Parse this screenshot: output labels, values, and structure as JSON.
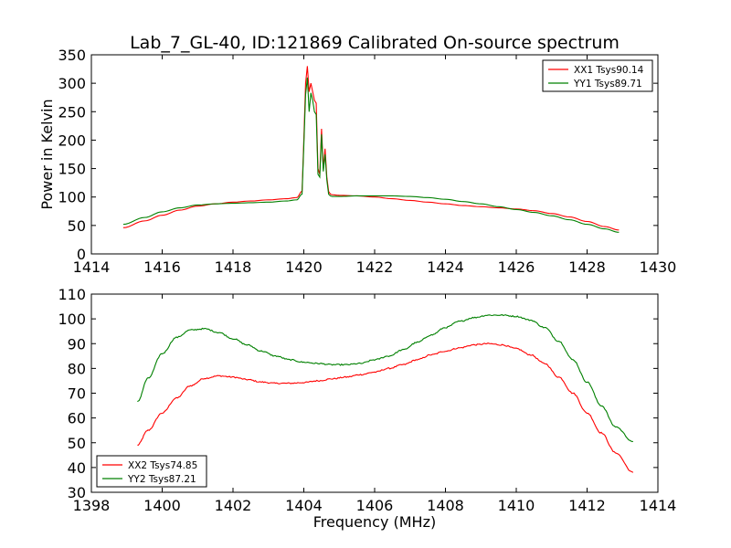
{
  "colors": {
    "red": "#ff0000",
    "green": "#008000"
  },
  "chart_data": [
    {
      "type": "line",
      "title": "Lab_7_GL-40, ID:121869 Calibrated On-source spectrum",
      "xlabel": "",
      "ylabel": "Power in Kelvin",
      "xlim": [
        1414,
        1430
      ],
      "ylim": [
        0,
        350
      ],
      "xticks": [
        1414,
        1416,
        1418,
        1420,
        1422,
        1424,
        1426,
        1428,
        1430
      ],
      "yticks": [
        0,
        50,
        100,
        150,
        200,
        250,
        300,
        350
      ],
      "legend_position": "top-right",
      "series": [
        {
          "name": "XX1 Tsys90.14",
          "color": "#ff0000",
          "x": [
            1414.9,
            1415.5,
            1416.0,
            1416.5,
            1417.0,
            1417.5,
            1418.0,
            1418.5,
            1419.0,
            1419.5,
            1419.8,
            1419.95,
            1420.0,
            1420.05,
            1420.1,
            1420.15,
            1420.2,
            1420.25,
            1420.3,
            1420.35,
            1420.4,
            1420.45,
            1420.5,
            1420.55,
            1420.6,
            1420.65,
            1420.7,
            1420.75,
            1420.8,
            1421.0,
            1421.5,
            1422.0,
            1422.5,
            1423.0,
            1423.5,
            1424.0,
            1424.5,
            1425.0,
            1425.5,
            1426.0,
            1426.5,
            1427.0,
            1427.5,
            1428.0,
            1428.5,
            1428.9
          ],
          "y": [
            46,
            58,
            68,
            77,
            84,
            88,
            91,
            93,
            95,
            97,
            99,
            110,
            200,
            300,
            330,
            285,
            300,
            285,
            270,
            265,
            150,
            140,
            220,
            150,
            185,
            135,
            110,
            105,
            104,
            103,
            102,
            100,
            97,
            94,
            91,
            88,
            85,
            83,
            81,
            79,
            76,
            71,
            65,
            57,
            48,
            42
          ]
        },
        {
          "name": "YY1 Tsys89.71",
          "color": "#008000",
          "x": [
            1414.9,
            1415.5,
            1416.0,
            1416.5,
            1417.0,
            1417.5,
            1418.0,
            1418.5,
            1419.0,
            1419.5,
            1419.8,
            1419.95,
            1420.0,
            1420.05,
            1420.1,
            1420.15,
            1420.2,
            1420.25,
            1420.3,
            1420.35,
            1420.4,
            1420.45,
            1420.5,
            1420.55,
            1420.6,
            1420.65,
            1420.7,
            1420.75,
            1420.8,
            1421.0,
            1421.5,
            1422.0,
            1422.5,
            1423.0,
            1423.5,
            1424.0,
            1424.5,
            1425.0,
            1425.5,
            1426.0,
            1426.5,
            1427.0,
            1427.5,
            1428.0,
            1428.5,
            1428.9
          ],
          "y": [
            52,
            64,
            74,
            81,
            86,
            88,
            89,
            90,
            91,
            93,
            95,
            105,
            190,
            280,
            310,
            250,
            283,
            270,
            250,
            245,
            140,
            135,
            210,
            145,
            175,
            130,
            105,
            102,
            101,
            101,
            102,
            102,
            102,
            101,
            99,
            96,
            92,
            88,
            83,
            78,
            73,
            67,
            60,
            52,
            44,
            38
          ]
        }
      ]
    },
    {
      "type": "line",
      "title": "",
      "xlabel": "Frequency (MHz)",
      "ylabel": "",
      "xlim": [
        1398,
        1414
      ],
      "ylim": [
        30,
        110
      ],
      "xticks": [
        1398,
        1400,
        1402,
        1404,
        1406,
        1408,
        1410,
        1412,
        1414
      ],
      "yticks": [
        30,
        40,
        50,
        60,
        70,
        80,
        90,
        100,
        110
      ],
      "legend_position": "bottom-left",
      "series": [
        {
          "name": "XX2 Tsys74.85",
          "color": "#ff0000",
          "x": [
            1399.3,
            1399.6,
            1400.0,
            1400.4,
            1400.8,
            1401.2,
            1401.6,
            1402.0,
            1402.4,
            1402.8,
            1403.2,
            1403.6,
            1404.0,
            1404.4,
            1404.8,
            1405.2,
            1405.6,
            1406.0,
            1406.4,
            1406.8,
            1407.2,
            1407.6,
            1408.0,
            1408.4,
            1408.8,
            1409.2,
            1409.6,
            1410.0,
            1410.4,
            1410.8,
            1411.2,
            1411.6,
            1412.0,
            1412.4,
            1412.8,
            1413.3
          ],
          "y": [
            49,
            55,
            62,
            68,
            73,
            76,
            77,
            76.5,
            75.5,
            74.5,
            74,
            74,
            74.3,
            75,
            75.8,
            76.5,
            77.5,
            78.5,
            80,
            81.5,
            83.5,
            85.5,
            87,
            88.3,
            89.5,
            90,
            89.5,
            88,
            85.5,
            82,
            76.5,
            70,
            62,
            54,
            46,
            38
          ]
        },
        {
          "name": "YY2 Tsys87.21",
          "color": "#008000",
          "x": [
            1399.3,
            1399.6,
            1400.0,
            1400.4,
            1400.8,
            1401.2,
            1401.6,
            1402.0,
            1402.4,
            1402.8,
            1403.2,
            1403.6,
            1404.0,
            1404.4,
            1404.8,
            1405.2,
            1405.6,
            1406.0,
            1406.4,
            1406.8,
            1407.2,
            1407.6,
            1408.0,
            1408.4,
            1408.8,
            1409.2,
            1409.6,
            1410.0,
            1410.4,
            1410.8,
            1411.2,
            1411.6,
            1412.0,
            1412.4,
            1412.8,
            1413.3
          ],
          "y": [
            66.5,
            76,
            86,
            92.5,
            95.5,
            96,
            94.5,
            92,
            89.5,
            87,
            85,
            83.5,
            82.5,
            82,
            81.5,
            81.5,
            82,
            83.5,
            85,
            87.5,
            90.5,
            93.5,
            96.5,
            99,
            100.5,
            101.5,
            101.5,
            101,
            99.5,
            96.5,
            91,
            83.5,
            74.5,
            65,
            56.5,
            50.5
          ]
        }
      ]
    }
  ]
}
